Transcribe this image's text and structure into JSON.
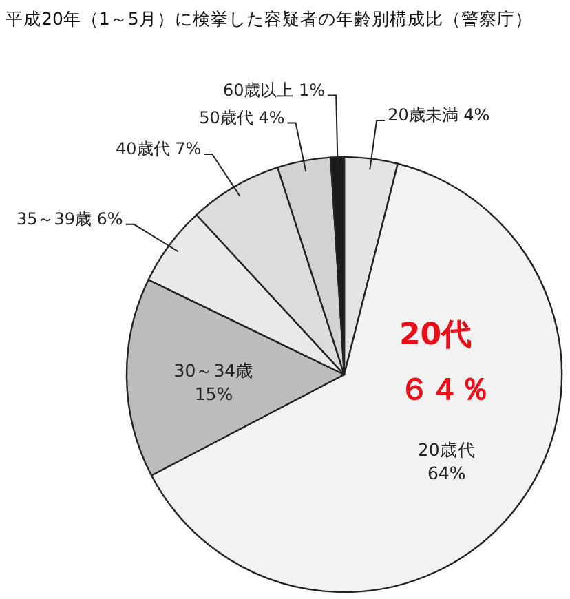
{
  "chart_data": {
    "type": "pie",
    "title": "平成20年（1～5月）に検挙した容疑者の年齢別構成比（警察庁）",
    "categories": [
      "20歳未満",
      "20歳代",
      "30～34歳",
      "35～39歳",
      "40歳代",
      "50歳代",
      "60歳以上"
    ],
    "values": [
      4,
      64,
      15,
      6,
      7,
      4,
      1
    ],
    "value_labels": [
      "4%",
      "64%",
      "15%",
      "6%",
      "7%",
      "4%",
      "1%"
    ],
    "colors": [
      "#e4e4e4",
      "#f2f2f2",
      "#bdbdbd",
      "#e9e9e9",
      "#dcdcdc",
      "#d2d2d2",
      "#1a1a1a"
    ],
    "annotations": [
      "20代",
      "６４％"
    ]
  }
}
